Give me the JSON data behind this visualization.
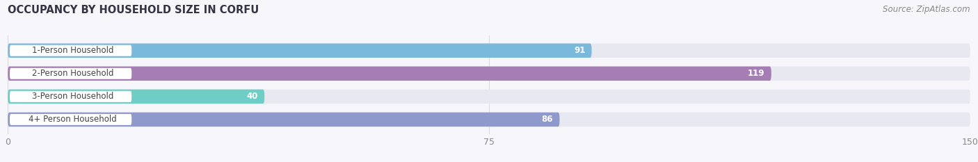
{
  "title": "OCCUPANCY BY HOUSEHOLD SIZE IN CORFU",
  "source": "Source: ZipAtlas.com",
  "categories": [
    "1-Person Household",
    "2-Person Household",
    "3-Person Household",
    "4+ Person Household"
  ],
  "values": [
    91,
    119,
    40,
    86
  ],
  "bar_colors": [
    "#7ab8dc",
    "#a67db5",
    "#6ecdc4",
    "#9099cc"
  ],
  "bar_bg_color": "#e8e8f0",
  "xlim": [
    0,
    150
  ],
  "xticks": [
    0,
    75,
    150
  ],
  "title_fontsize": 10.5,
  "source_fontsize": 8.5,
  "label_fontsize": 8.5,
  "value_fontsize": 8.5,
  "bg_color": "#f7f7fb",
  "bar_height": 0.62,
  "label_pill_color": "#ffffff",
  "label_text_color": "#444444",
  "value_text_color": "#ffffff",
  "tick_color": "#888888",
  "grid_color": "#d8d8e8",
  "title_color": "#333344",
  "source_color": "#888888"
}
